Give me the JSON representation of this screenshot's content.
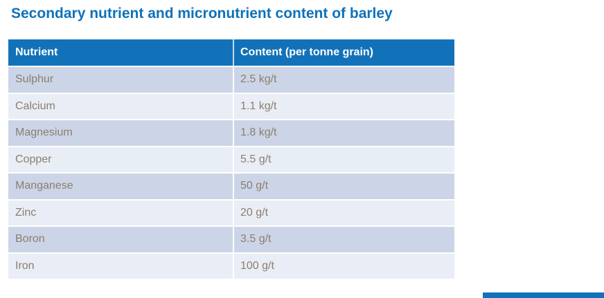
{
  "page": {
    "title": "Secondary nutrient and micronutrient content of barley"
  },
  "table": {
    "headers": {
      "nutrient": "Nutrient",
      "content": "Content (per tonne grain)"
    },
    "rows": [
      {
        "nutrient": "Sulphur",
        "content": "2.5 kg/t"
      },
      {
        "nutrient": "Calcium",
        "content": "1.1 kg/t"
      },
      {
        "nutrient": "Magnesium",
        "content": "1.8 kg/t"
      },
      {
        "nutrient": "Copper",
        "content": "5.5 g/t"
      },
      {
        "nutrient": "Manganese",
        "content": "50 g/t"
      },
      {
        "nutrient": "Zinc",
        "content": "20 g/t"
      },
      {
        "nutrient": "Boron",
        "content": "3.5 g/t"
      },
      {
        "nutrient": "Iron",
        "content": "100 g/t"
      }
    ]
  },
  "colors": {
    "title_text": "#0d72ba",
    "header_background": "#1272b9",
    "header_text": "#ffffff",
    "row_stripe_dark": "#cbd5e7",
    "row_stripe_light": "#e9edf5",
    "cell_text": "#8b7e6e",
    "accent_bar": "#1272b9"
  },
  "chart_data": {
    "type": "table",
    "title": "Secondary nutrient and micronutrient content of barley",
    "columns": [
      "Nutrient",
      "Content (per tonne grain)"
    ],
    "rows": [
      [
        "Sulphur",
        "2.5 kg/t"
      ],
      [
        "Calcium",
        "1.1 kg/t"
      ],
      [
        "Magnesium",
        "1.8 kg/t"
      ],
      [
        "Copper",
        "5.5 g/t"
      ],
      [
        "Manganese",
        "50 g/t"
      ],
      [
        "Zinc",
        "20 g/t"
      ],
      [
        "Boron",
        "3.5 g/t"
      ],
      [
        "Iron",
        "100 g/t"
      ]
    ],
    "units_note_kg": "kg/t",
    "units_note_g": "g/t"
  }
}
